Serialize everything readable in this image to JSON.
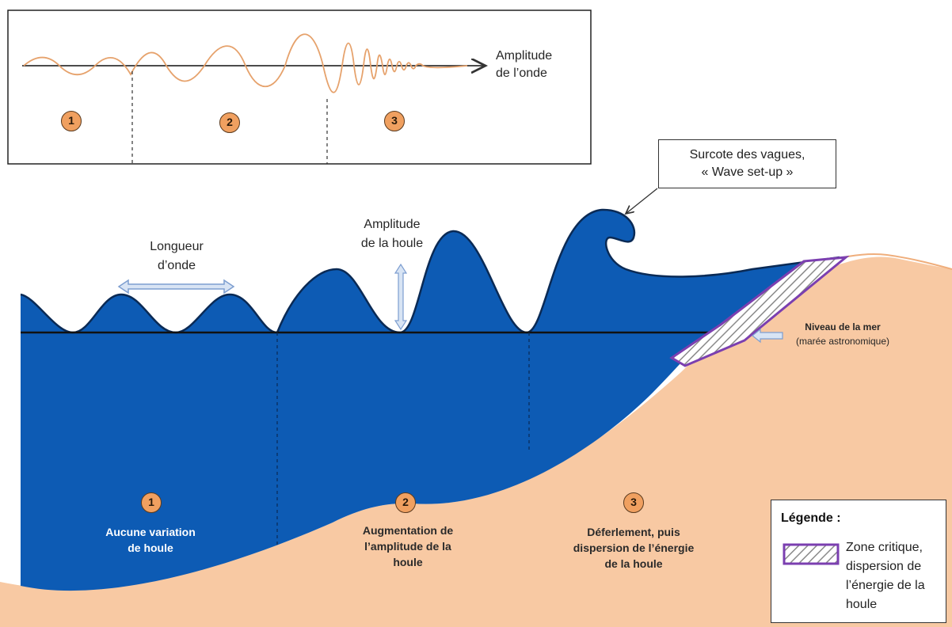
{
  "colors": {
    "water": "#0d5bb4",
    "sand": "#f8c9a3",
    "sand_dark": "#efae7c",
    "wave_line": "#e6a26c",
    "badge": "#f0a060",
    "zone_border": "#7b3fb0",
    "arrow_fill": "#d8e4f4",
    "arrow_stroke": "#7d9ed0"
  },
  "inset": {
    "axis_label_line1": "Amplitude",
    "axis_label_line2": "de l’onde",
    "zones": [
      "1",
      "2",
      "3"
    ]
  },
  "callout": {
    "line1": "Surcote des vagues,",
    "line2": "« Wave set-up »"
  },
  "annotations": {
    "wavelength_line1": "Longueur",
    "wavelength_line2": "d’onde",
    "amplitude_line1": "Amplitude",
    "amplitude_line2": "de la houle",
    "sea_level_line1": "Niveau de la mer",
    "sea_level_line2": "(marée astronomique)"
  },
  "zones": [
    {
      "number": "1",
      "line1": "Aucune variation",
      "line2": "de  houle",
      "line3": ""
    },
    {
      "number": "2",
      "line1": "Augmentation de",
      "line2": "l’amplitude  de la",
      "line3": "houle"
    },
    {
      "number": "3",
      "line1": "Déferlement, puis",
      "line2": "dispersion de l’énergie",
      "line3": "de la houle"
    }
  ],
  "legend": {
    "title": "Légende :",
    "line1": "Zone critique,",
    "line2": "dispersion  de",
    "line3": "l’énergie de la",
    "line4": "houle"
  }
}
